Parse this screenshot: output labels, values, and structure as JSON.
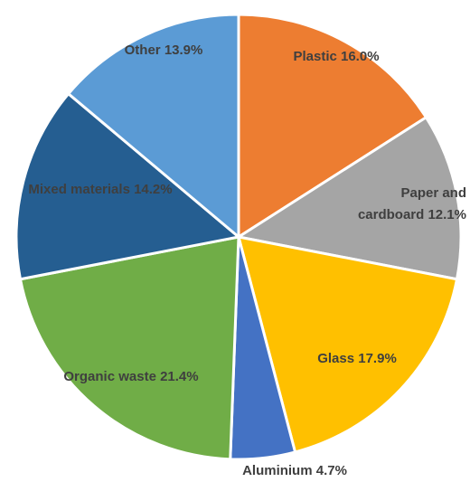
{
  "chart_data": {
    "type": "pie",
    "title": "",
    "start_angle_deg": 0,
    "direction": "clockwise",
    "slices": [
      {
        "name": "Plastic",
        "value": 16.0,
        "label": "Plastic 16.0%",
        "color": "#ED7D31"
      },
      {
        "name": "Paper and cardboard",
        "value": 12.1,
        "label": "Paper and cardboard 12.1%",
        "label_lines": [
          "Paper and",
          "cardboard 12.1%"
        ],
        "color": "#A5A5A5"
      },
      {
        "name": "Glass",
        "value": 17.9,
        "label": "Glass 17.9%",
        "color": "#FFC000"
      },
      {
        "name": "Aluminium",
        "value": 4.7,
        "label": "Aluminium 4.7%",
        "color": "#4472C4"
      },
      {
        "name": "Organic waste",
        "value": 21.4,
        "label": "Organic waste 21.4%",
        "color": "#70AD47"
      },
      {
        "name": "Mixed materials",
        "value": 14.2,
        "label": "Mixed materials 14.2%",
        "color": "#255E91"
      },
      {
        "name": "Other",
        "value": 13.9,
        "label": "Other 13.9%",
        "color": "#5B9BD5"
      }
    ]
  }
}
